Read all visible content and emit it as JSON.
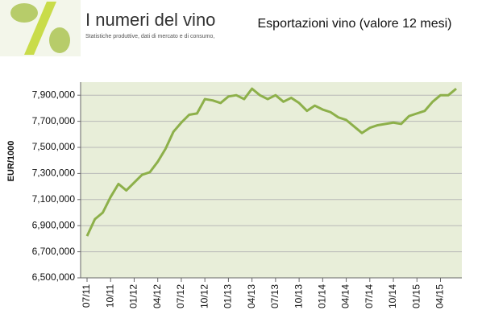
{
  "header": {
    "name": "I numeri del vino",
    "tagline": "Statistiche produttive, dati di mercato e di consumo,"
  },
  "chart_data": {
    "type": "line",
    "title": "Esportazioni vino (valore 12 mesi)",
    "y_label": "EUR/1000",
    "categories": [
      "07/11",
      null,
      null,
      "10/11",
      null,
      null,
      "01/12",
      null,
      null,
      "04/12",
      null,
      null,
      "07/12",
      null,
      null,
      "10/12",
      null,
      null,
      "01/13",
      null,
      null,
      "04/13",
      null,
      null,
      "07/13",
      null,
      null,
      "10/13",
      null,
      null,
      "01/14",
      null,
      null,
      "04/14",
      null,
      null,
      "07/14",
      null,
      null,
      "10/14",
      null,
      null,
      "01/15",
      null,
      null,
      "04/15",
      null,
      null
    ],
    "series": [
      {
        "name": "Esportazioni",
        "color": "#8db04a",
        "values": [
          6820000,
          6950000,
          7000000,
          7120000,
          7220000,
          7170000,
          7230000,
          7290000,
          7310000,
          7390000,
          7490000,
          7620000,
          7690000,
          7750000,
          7760000,
          7870000,
          7860000,
          7840000,
          7890000,
          7900000,
          7870000,
          7950000,
          7900000,
          7870000,
          7900000,
          7850000,
          7880000,
          7840000,
          7780000,
          7820000,
          7790000,
          7770000,
          7730000,
          7710000,
          7660000,
          7610000,
          7650000,
          7670000,
          7680000,
          7690000,
          7680000,
          7740000,
          7760000,
          7780000,
          7850000,
          7900000,
          7900000,
          7950000
        ]
      }
    ],
    "ylim": [
      6500000,
      8000000
    ],
    "yticks": [
      {
        "value": 6500000,
        "label": "6,500,000"
      },
      {
        "value": 6700000,
        "label": "6,700,000"
      },
      {
        "value": 6900000,
        "label": "6,900,000"
      },
      {
        "value": 7100000,
        "label": "7,100,000"
      },
      {
        "value": 7300000,
        "label": "7,300,000"
      },
      {
        "value": 7500000,
        "label": "7,500,000"
      },
      {
        "value": 7700000,
        "label": "7,700,000"
      },
      {
        "value": 7900000,
        "label": "7,900,000"
      }
    ],
    "grid": true,
    "plot_background": "#e8eed9"
  }
}
